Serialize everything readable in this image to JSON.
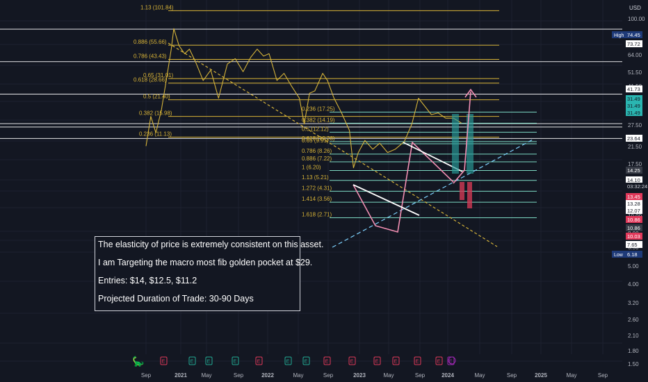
{
  "chart_data": {
    "type": "line",
    "currency_label": "USD",
    "y_scale": "log",
    "y_ticks": [
      "100.00",
      "64.00",
      "51.50",
      "41.50",
      "33.50",
      "27.50",
      "21.50",
      "17.50",
      "12.50",
      "10.00",
      "8.00",
      "6.50",
      "5.00",
      "4.00",
      "3.20",
      "2.60",
      "2.10",
      "1.80",
      "1.50"
    ],
    "x_ticks": [
      "Sep",
      "2021",
      "May",
      "Sep",
      "2022",
      "May",
      "Sep",
      "2023",
      "May",
      "Sep",
      "2024",
      "May",
      "Sep",
      "2025",
      "May",
      "Sep"
    ],
    "price_labels": [
      {
        "text": "High",
        "value": "74.45",
        "kind": "high"
      },
      {
        "text": "",
        "value": "73.72",
        "kind": "white"
      },
      {
        "text": "",
        "value": "41.73",
        "kind": "white"
      },
      {
        "text": "",
        "value": "31.49",
        "kind": "teal"
      },
      {
        "text": "",
        "value": "31.49",
        "kind": "teal"
      },
      {
        "text": "",
        "value": "31.49",
        "kind": "teal"
      },
      {
        "text": "",
        "value": "23.64",
        "kind": "white"
      },
      {
        "text": "",
        "value": "14.25",
        "kind": "gray"
      },
      {
        "text": "",
        "value": "14.10",
        "kind": "white"
      },
      {
        "text": "",
        "value": "03:32:24",
        "kind": "timer"
      },
      {
        "text": "",
        "value": "13.45",
        "kind": "red"
      },
      {
        "text": "",
        "value": "13.28",
        "kind": "white"
      },
      {
        "text": "",
        "value": "12.07",
        "kind": "white"
      },
      {
        "text": "",
        "value": "10.86",
        "kind": "red"
      },
      {
        "text": "",
        "value": "10.86",
        "kind": "gray"
      },
      {
        "text": "",
        "value": "10.03",
        "kind": "red"
      },
      {
        "text": "",
        "value": "7.65",
        "kind": "white"
      },
      {
        "text": "Low",
        "value": "6.18",
        "kind": "low"
      }
    ],
    "fib_macro": [
      "1.13 (101.84)",
      "0.886 (55.66)",
      "0.786 (43.43)",
      "0.65 (31.01)",
      "0.618 (28.66)",
      "0.5 (21.40)",
      "0.382 (15.98)",
      "0.236 (11.13)"
    ],
    "fib_recent": [
      "0.236 (17.25)",
      "0.382 (14.19)",
      "0.5 (12.12)",
      "0.618 (10.28)",
      "0.65 (9.91)",
      "0.786 (8.26)",
      "0.886 (7.22)",
      "1 (6.20)",
      "1.13 (5.21)",
      "1.272 (4.31)",
      "1.414 (3.56)",
      "1.618 (2.71)"
    ],
    "price_series": [
      [
        "2020-09-01",
        9.5
      ],
      [
        "2020-09-20",
        16.0
      ],
      [
        "2020-10-10",
        12.0
      ],
      [
        "2020-11-01",
        18.0
      ],
      [
        "2020-11-20",
        30.0
      ],
      [
        "2020-12-10",
        52.0
      ],
      [
        "2020-12-20",
        74.45
      ],
      [
        "2021-01-10",
        55.0
      ],
      [
        "2021-02-01",
        48.0
      ],
      [
        "2021-02-20",
        52.0
      ],
      [
        "2021-03-15",
        42.0
      ],
      [
        "2021-04-15",
        30.0
      ],
      [
        "2021-05-15",
        36.0
      ],
      [
        "2021-06-15",
        22.0
      ],
      [
        "2021-07-20",
        40.0
      ],
      [
        "2021-08-20",
        44.0
      ],
      [
        "2021-09-20",
        35.0
      ],
      [
        "2021-10-20",
        45.0
      ],
      [
        "2021-11-15",
        52.0
      ],
      [
        "2021-12-10",
        46.0
      ],
      [
        "2022-01-01",
        48.0
      ],
      [
        "2022-02-01",
        30.0
      ],
      [
        "2022-03-01",
        34.0
      ],
      [
        "2022-04-01",
        27.0
      ],
      [
        "2022-05-01",
        22.0
      ],
      [
        "2022-05-20",
        14.0
      ],
      [
        "2022-06-10",
        24.0
      ],
      [
        "2022-07-01",
        25.0
      ],
      [
        "2022-08-01",
        34.0
      ],
      [
        "2022-08-20",
        30.0
      ],
      [
        "2022-09-15",
        22.0
      ],
      [
        "2022-10-15",
        17.0
      ],
      [
        "2022-11-15",
        12.5
      ],
      [
        "2022-12-01",
        6.5
      ],
      [
        "2022-12-20",
        8.5
      ],
      [
        "2023-01-15",
        10.5
      ],
      [
        "2023-02-15",
        9.0
      ],
      [
        "2023-03-15",
        10.0
      ],
      [
        "2023-04-15",
        8.5
      ],
      [
        "2023-05-15",
        9.0
      ],
      [
        "2023-06-20",
        10.3
      ],
      [
        "2023-07-20",
        14.0
      ],
      [
        "2023-08-15",
        22.0
      ],
      [
        "2023-09-10",
        19.0
      ],
      [
        "2023-10-05",
        16.5
      ],
      [
        "2023-11-01",
        17.0
      ],
      [
        "2023-12-01",
        15.5
      ],
      [
        "2024-01-01",
        15.5
      ],
      [
        "2024-02-01",
        14.25
      ]
    ],
    "fib_macro_levels": [
      101.84,
      55.66,
      43.43,
      31.01,
      28.66,
      21.4,
      15.98,
      11.13
    ],
    "fib_recent_levels": [
      17.25,
      14.19,
      12.12,
      10.28,
      9.91,
      8.26,
      7.22,
      6.2,
      5.21,
      4.31,
      3.56,
      2.71
    ],
    "projection_arrow": [
      [
        "2024-02-01",
        14.25
      ],
      [
        "2024-04-01",
        41.73
      ]
    ],
    "event_markers": [
      "E",
      "E",
      "E",
      "E",
      "E",
      "E",
      "E",
      "E",
      "E",
      "E",
      "E",
      "E",
      "E",
      "E"
    ],
    "colors": {
      "background": "#131722",
      "fib_macro": "#d9b437",
      "fib_recent": "#7ddac4",
      "price": "#d6b43a",
      "downtrend": "#d6b43a",
      "uptrend": "#7ed3ff",
      "arrow": "#f28fb3",
      "teal_box": "#2a9d9b",
      "red_box": "#d23a55"
    }
  },
  "note": {
    "lines": [
      "The elasticity of price is extremely consistent on this asset.",
      "I am Targeting the macro most fib golden pocket at $29.",
      "Entries: $14, $12.5, $11.2",
      "Projected Duration of Trade: 30-90 Days"
    ]
  }
}
